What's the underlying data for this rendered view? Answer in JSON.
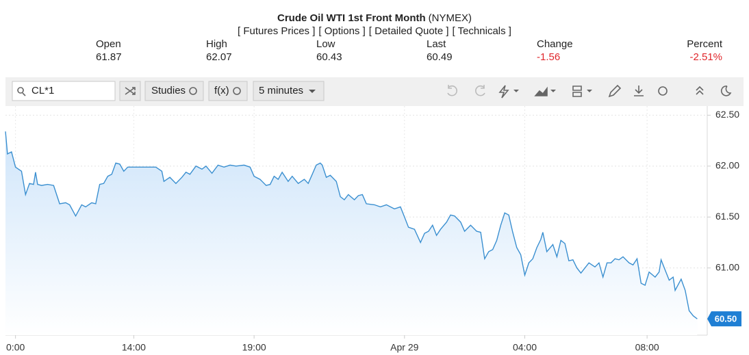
{
  "header": {
    "title": "Crude Oil WTI 1st Front Month",
    "exchange": "(NYMEX)",
    "links": [
      "[ Futures Prices ]",
      "[ Options ]",
      "[ Detailed Quote ]",
      "[ Technicals ]"
    ],
    "quote": [
      {
        "label": "Open",
        "value": "61.87"
      },
      {
        "label": "High",
        "value": "62.07"
      },
      {
        "label": "Low",
        "value": "60.43"
      },
      {
        "label": "Last",
        "value": "60.49"
      },
      {
        "label": "Change",
        "value": "-1.56"
      },
      {
        "label": "Percent",
        "value": "-2.51%"
      }
    ]
  },
  "toolbar": {
    "symbol": "CL*1",
    "studies": "Studies",
    "fx": "f(x)",
    "interval": "5 minutes"
  },
  "chart_data": {
    "type": "area",
    "color": "#3a8fd0",
    "grid": true,
    "x": [
      0,
      1,
      3,
      5,
      8,
      10,
      12,
      14,
      15,
      16,
      18,
      21,
      24,
      27,
      30,
      32,
      35,
      38,
      40,
      43,
      45,
      47,
      49,
      51,
      53,
      55,
      57,
      59,
      61,
      66,
      71,
      75,
      78,
      79,
      82,
      85,
      88,
      90,
      92,
      95,
      98,
      100,
      103,
      106,
      109,
      112,
      115,
      119,
      122,
      124,
      127,
      130,
      132,
      134,
      136,
      138,
      141,
      143,
      146,
      149,
      151,
      153,
      155,
      157,
      158,
      160,
      162,
      165,
      167,
      169,
      171,
      174,
      176,
      178,
      180,
      184,
      187,
      190,
      194,
      197,
      199,
      201,
      204,
      207,
      209,
      211,
      213,
      215,
      217,
      220,
      222,
      224,
      227,
      229,
      232,
      235,
      237,
      239,
      241,
      243,
      245,
      247,
      249,
      251,
      253,
      255,
      257,
      259,
      261,
      263,
      265,
      267,
      268,
      270,
      273,
      275,
      277,
      279,
      281,
      283,
      285,
      287,
      289,
      291,
      294,
      296,
      298,
      300,
      302,
      304,
      306,
      308,
      311,
      313,
      315,
      317,
      319,
      321,
      324,
      326,
      327,
      329,
      331,
      333,
      334,
      337,
      339,
      341,
      343,
      345
    ],
    "values": [
      62.34,
      62.12,
      62.14,
      61.99,
      61.95,
      61.72,
      61.83,
      61.82,
      61.94,
      61.82,
      61.81,
      61.82,
      61.81,
      61.63,
      61.64,
      61.62,
      61.51,
      61.62,
      61.6,
      61.64,
      61.63,
      61.82,
      61.83,
      61.9,
      61.92,
      62.03,
      62.02,
      61.95,
      61.99,
      61.99,
      61.99,
      61.99,
      61.95,
      61.85,
      61.89,
      61.83,
      61.89,
      61.94,
      61.92,
      62.0,
      61.97,
      62.0,
      61.93,
      62.01,
      61.99,
      62.01,
      62.0,
      62.01,
      61.99,
      61.9,
      61.87,
      61.81,
      61.82,
      61.9,
      61.87,
      61.94,
      61.85,
      61.9,
      61.83,
      61.87,
      61.83,
      61.92,
      62.01,
      62.03,
      62.01,
      61.89,
      61.91,
      61.85,
      61.7,
      61.67,
      61.72,
      61.67,
      61.71,
      61.72,
      61.63,
      61.62,
      61.6,
      61.62,
      61.58,
      61.6,
      61.5,
      61.4,
      61.38,
      61.25,
      61.34,
      61.36,
      61.42,
      61.32,
      61.38,
      61.45,
      61.52,
      61.51,
      61.45,
      61.36,
      61.42,
      61.36,
      61.35,
      61.09,
      61.16,
      61.18,
      61.27,
      61.42,
      61.54,
      61.52,
      61.35,
      61.2,
      61.13,
      60.93,
      61.05,
      61.09,
      61.2,
      61.28,
      61.35,
      61.16,
      61.23,
      61.11,
      61.27,
      61.24,
      61.07,
      61.08,
      61.0,
      60.95,
      61.0,
      61.05,
      61.01,
      61.05,
      60.91,
      61.05,
      61.05,
      61.09,
      61.08,
      61.11,
      61.05,
      61.03,
      61.09,
      60.85,
      60.83,
      60.96,
      60.91,
      60.96,
      61.08,
      60.98,
      60.88,
      60.91,
      60.78,
      60.89,
      60.78,
      60.58,
      60.53,
      60.5
    ],
    "xlim": [
      0,
      350
    ],
    "xticks": [
      {
        "value": 5,
        "label": "0:00"
      },
      {
        "value": 64,
        "label": "14:00"
      },
      {
        "value": 124,
        "label": "19:00"
      },
      {
        "value": 199,
        "label": "Apr 29"
      },
      {
        "value": 259,
        "label": "04:00"
      },
      {
        "value": 320,
        "label": "08:00"
      }
    ],
    "ylim": [
      60.34,
      62.59
    ],
    "yticks": [
      {
        "value": 61,
        "label": "61.00"
      },
      {
        "value": 61.5,
        "label": "61.50"
      },
      {
        "value": 62,
        "label": "62.00"
      },
      {
        "value": 62.5,
        "label": "62.50"
      }
    ],
    "last_label": {
      "value": 60.5,
      "label": "60.50"
    }
  }
}
